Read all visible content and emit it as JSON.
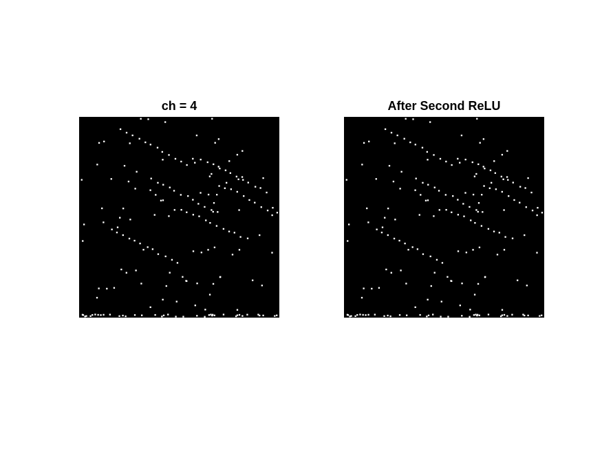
{
  "panels": [
    {
      "title": "ch = 4",
      "image": {
        "background": "#000000",
        "foreground": "#ffffff",
        "content": "sparse binary activation map"
      }
    },
    {
      "title": "After Second ReLU",
      "image": {
        "background": "#000000",
        "foreground": "#ffffff",
        "content": "sparse binary activation map"
      }
    }
  ]
}
